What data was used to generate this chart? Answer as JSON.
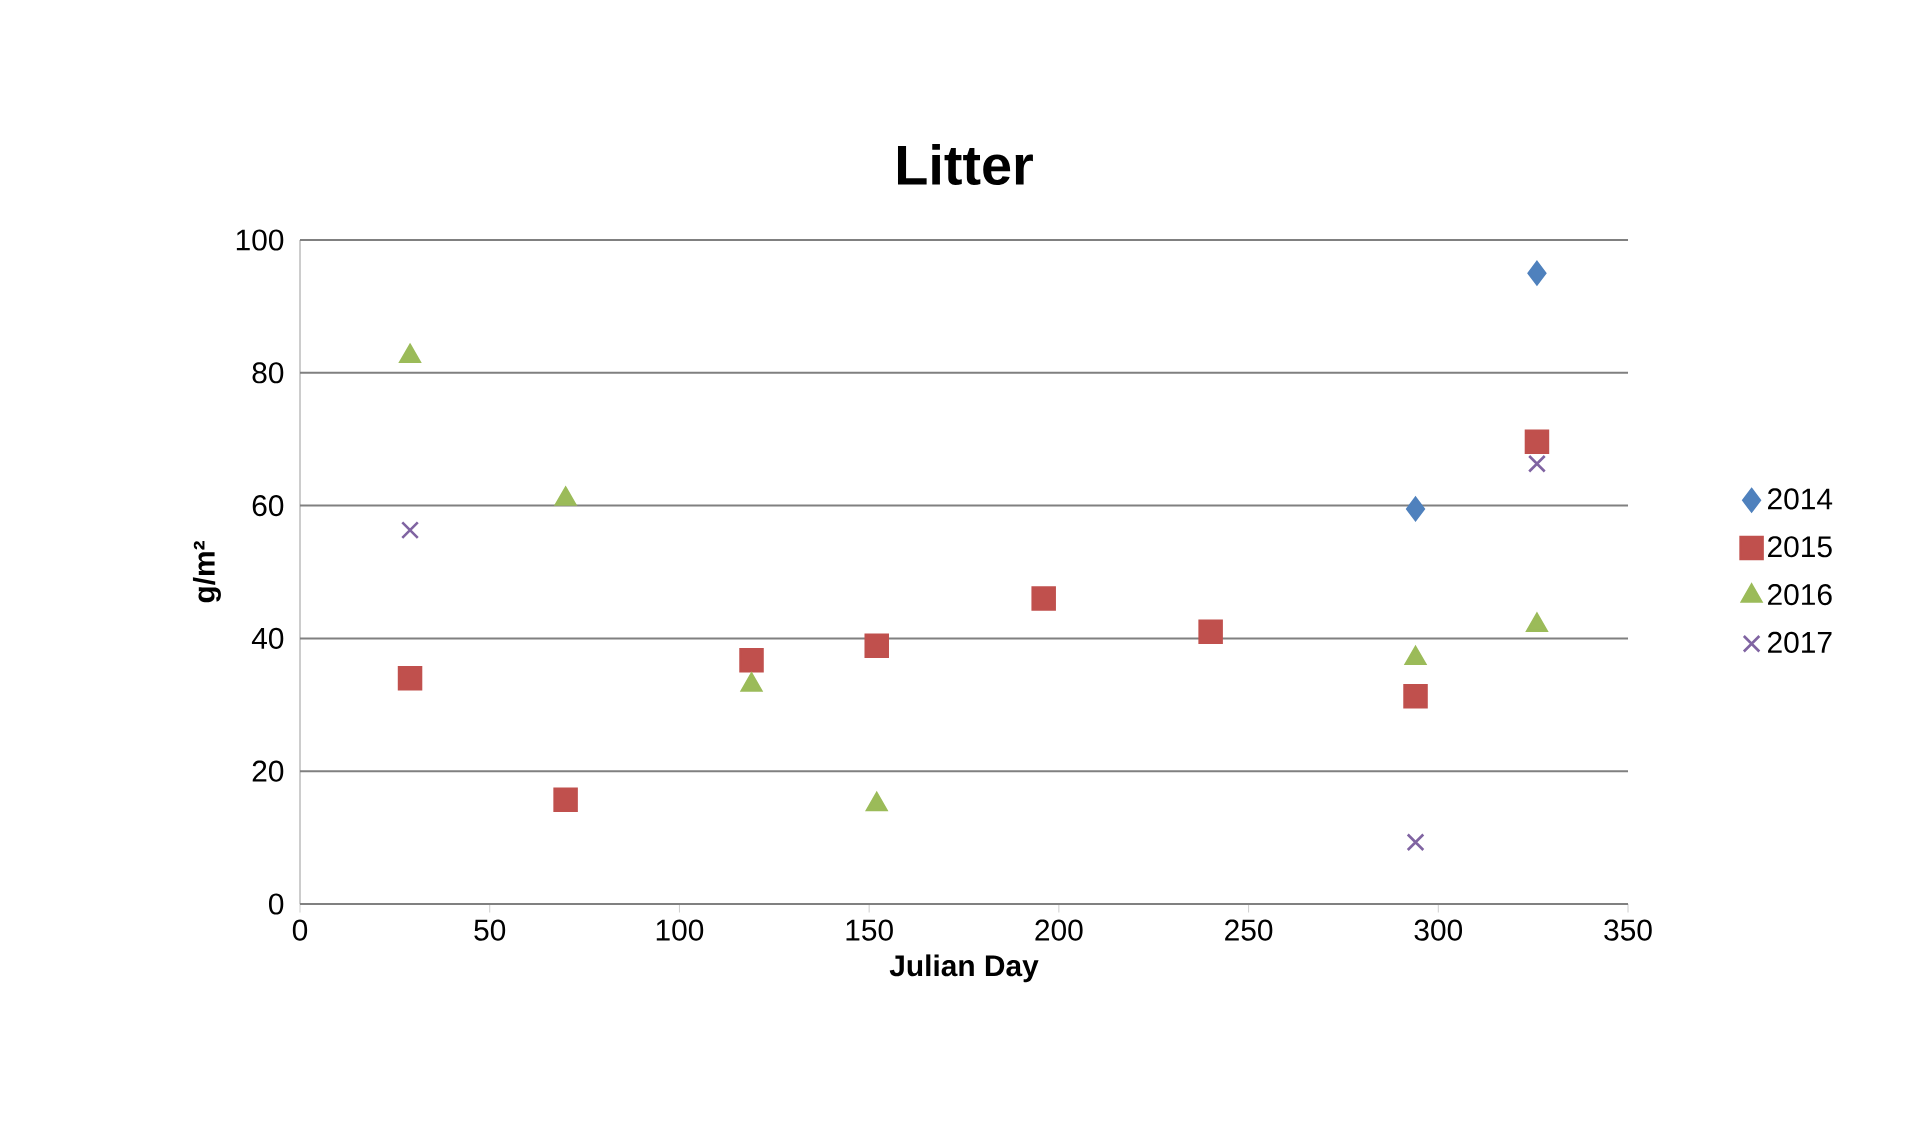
{
  "chart_data": {
    "type": "scatter",
    "title": "Litter",
    "xlabel": "Julian Day",
    "ylabel": "g/m²",
    "xlim": [
      0,
      350
    ],
    "ylim": [
      0,
      100
    ],
    "xticks": [
      0,
      50,
      100,
      150,
      200,
      250,
      300,
      350
    ],
    "yticks": [
      0,
      20,
      40,
      60,
      80,
      100
    ],
    "grid": "y",
    "legend": "right",
    "series": [
      {
        "name": "2014",
        "color": "#4f81bd",
        "marker": "diamond",
        "x": [
          294,
          326
        ],
        "values": [
          59.5,
          95
        ]
      },
      {
        "name": "2015",
        "color": "#c0504d",
        "marker": "square",
        "x": [
          29,
          70,
          119,
          152,
          196,
          240,
          294,
          326
        ],
        "values": [
          34,
          15.7,
          36.7,
          38.9,
          46,
          41,
          31.3,
          69.6
        ]
      },
      {
        "name": "2016",
        "color": "#9bbb59",
        "marker": "triangle",
        "x": [
          29,
          70,
          119,
          152,
          294,
          326
        ],
        "values": [
          82.5,
          61,
          33,
          15,
          37,
          42
        ]
      },
      {
        "name": "2017",
        "color": "#8064a2",
        "marker": "cross",
        "x": [
          29,
          294,
          326
        ],
        "values": [
          56.3,
          9.3,
          66.3
        ]
      }
    ]
  }
}
